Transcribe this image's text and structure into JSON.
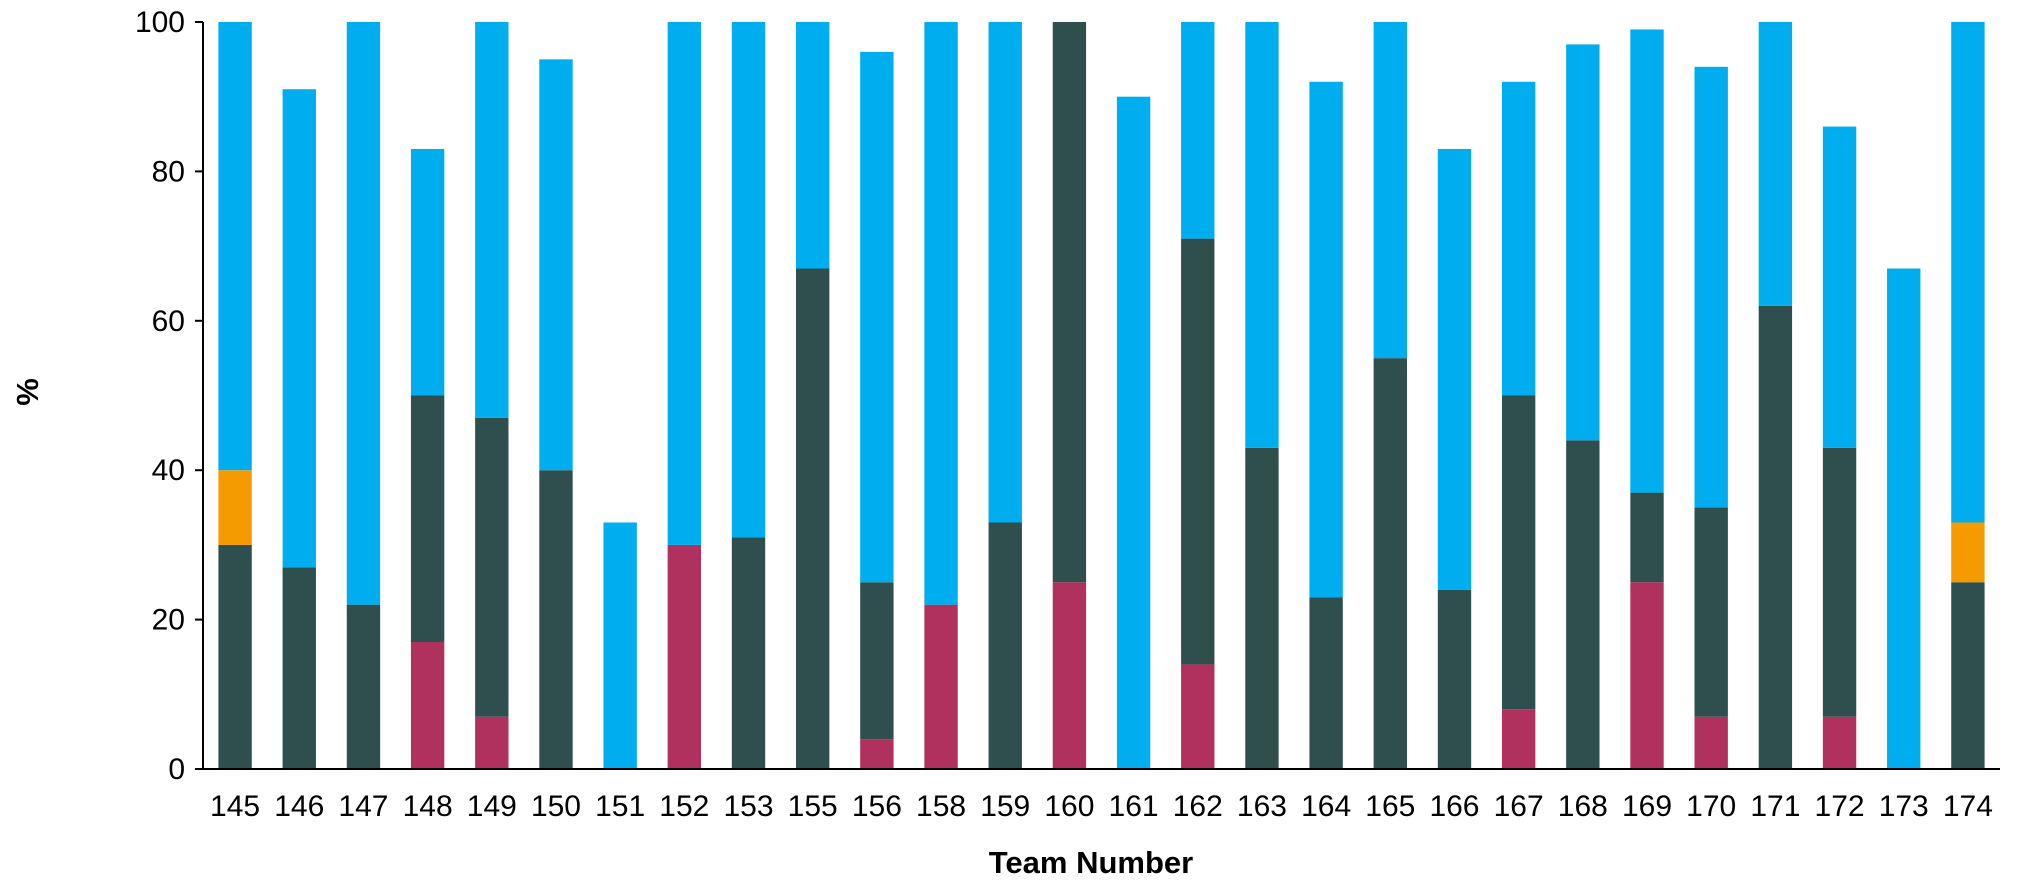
{
  "chart_data": {
    "type": "bar",
    "stacked": true,
    "xlabel": "Team Number",
    "ylabel": "%",
    "ylim": [
      0,
      100
    ],
    "yticks": [
      0,
      20,
      40,
      60,
      80,
      100
    ],
    "grid": false,
    "legend": "none",
    "categories": [
      "145",
      "146",
      "147",
      "148",
      "149",
      "150",
      "151",
      "152",
      "153",
      "155",
      "156",
      "158",
      "159",
      "160",
      "161",
      "162",
      "163",
      "164",
      "165",
      "166",
      "167",
      "168",
      "169",
      "170",
      "171",
      "172",
      "173",
      "174"
    ],
    "series": [
      {
        "color": "#b0305e",
        "values": [
          0,
          0,
          0,
          17,
          7,
          0,
          0,
          30,
          0,
          0,
          4,
          22,
          0,
          25,
          0,
          14,
          0,
          0,
          0,
          0,
          8,
          0,
          25,
          7,
          0,
          7,
          0,
          0
        ]
      },
      {
        "color": "#2f4f4f",
        "values": [
          30,
          27,
          22,
          33,
          40,
          40,
          0,
          0,
          31,
          67,
          21,
          0,
          33,
          75,
          0,
          57,
          43,
          23,
          55,
          24,
          42,
          44,
          12,
          28,
          62,
          36,
          0,
          25
        ]
      },
      {
        "color": "#f59a00",
        "values": [
          10,
          0,
          0,
          0,
          0,
          0,
          0,
          0,
          0,
          0,
          0,
          0,
          0,
          0,
          0,
          0,
          0,
          0,
          0,
          0,
          0,
          0,
          0,
          0,
          0,
          0,
          0,
          8
        ]
      },
      {
        "color": "#00adee",
        "values": [
          60,
          64,
          78,
          33,
          53,
          55,
          33,
          70,
          69,
          33,
          71,
          78,
          67,
          0,
          90,
          29,
          57,
          69,
          45,
          59,
          42,
          53,
          62,
          59,
          38,
          43,
          67,
          67
        ]
      }
    ]
  }
}
